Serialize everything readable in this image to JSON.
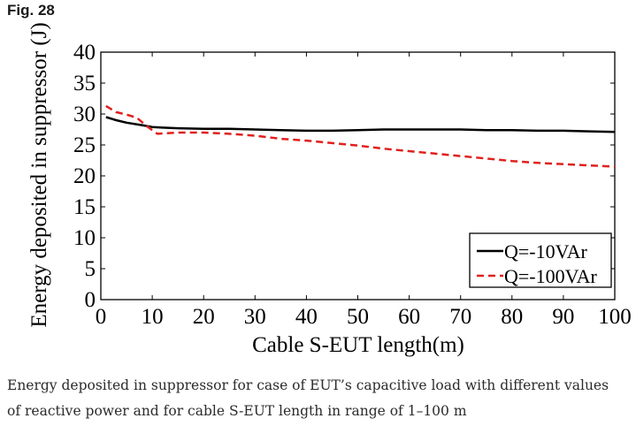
{
  "figure": {
    "label": "Fig. 28",
    "caption": "Energy deposited in suppressor for case of EUT’s capacitive load with different values of reactive power and for cable S-EUT length in range of 1–100 m"
  },
  "chart_data": {
    "type": "line",
    "xlabel": "Cable S-EUT length(m)",
    "ylabel": "Energy deposited in suppressor (J)",
    "xlim": [
      0,
      100
    ],
    "ylim": [
      0,
      40
    ],
    "xticks": [
      0,
      10,
      20,
      30,
      40,
      50,
      60,
      70,
      80,
      90,
      100
    ],
    "yticks": [
      0,
      5,
      10,
      15,
      20,
      25,
      30,
      35,
      40
    ],
    "grid": false,
    "legend_position": "bottom-right",
    "series": [
      {
        "name": "Q=-10VAr",
        "color": "#000000",
        "style": "solid",
        "x": [
          1,
          3,
          5,
          8,
          10,
          12,
          15,
          20,
          25,
          30,
          35,
          40,
          45,
          50,
          55,
          60,
          65,
          70,
          75,
          80,
          85,
          90,
          95,
          100
        ],
        "y": [
          29.5,
          29.0,
          28.6,
          28.2,
          27.9,
          27.8,
          27.7,
          27.6,
          27.6,
          27.5,
          27.4,
          27.3,
          27.3,
          27.4,
          27.5,
          27.5,
          27.5,
          27.5,
          27.4,
          27.4,
          27.3,
          27.3,
          27.2,
          27.1
        ]
      },
      {
        "name": "Q=-100VAr",
        "color": "#e0201b",
        "style": "dashed",
        "x": [
          1,
          3,
          5,
          7,
          9,
          11,
          15,
          20,
          25,
          30,
          35,
          40,
          45,
          50,
          55,
          60,
          65,
          70,
          75,
          80,
          85,
          90,
          95,
          100
        ],
        "y": [
          31.3,
          30.3,
          29.9,
          29.4,
          28.0,
          26.8,
          27.0,
          27.0,
          26.8,
          26.5,
          26.0,
          25.7,
          25.3,
          24.9,
          24.4,
          24.0,
          23.6,
          23.2,
          22.8,
          22.4,
          22.1,
          21.9,
          21.7,
          21.5
        ]
      }
    ]
  }
}
